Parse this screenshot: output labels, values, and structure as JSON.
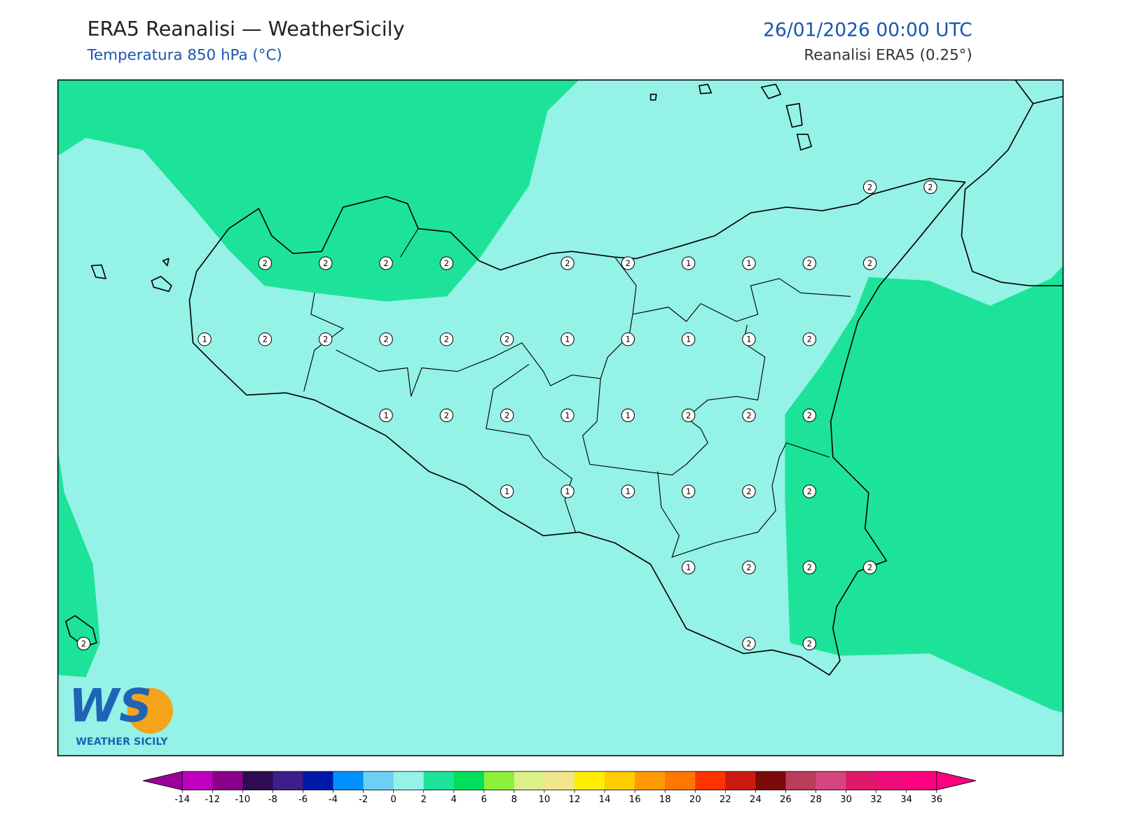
{
  "header": {
    "title": "ERA5 Reanalisi — WeatherSicily",
    "subtitle": "Temperatura 850 hPa (°C)",
    "datetime": "26/01/2026 00:00 UTC",
    "source": "Reanalisi ERA5 (0.25°)"
  },
  "grid": [
    [
      null,
      null,
      null,
      null,
      null,
      null,
      null,
      null,
      null,
      null,
      null,
      null,
      null,
      2,
      2
    ],
    [
      null,
      null,
      null,
      2,
      2,
      2,
      2,
      null,
      2,
      2,
      1,
      1,
      2,
      2,
      null
    ],
    [
      null,
      null,
      1,
      2,
      2,
      2,
      2,
      2,
      1,
      1,
      1,
      1,
      2,
      null,
      null
    ],
    [
      null,
      null,
      null,
      null,
      null,
      1,
      2,
      2,
      1,
      1,
      2,
      2,
      2,
      null,
      null
    ],
    [
      null,
      null,
      null,
      null,
      null,
      null,
      null,
      1,
      1,
      1,
      1,
      2,
      2,
      null,
      null
    ],
    [
      null,
      null,
      null,
      null,
      null,
      null,
      null,
      null,
      null,
      null,
      1,
      2,
      2,
      2,
      null
    ],
    [
      2,
      null,
      null,
      null,
      null,
      null,
      null,
      null,
      null,
      null,
      null,
      2,
      2,
      null,
      null
    ]
  ],
  "logo": {
    "mark": "WS",
    "name": "WEATHER SICILY"
  },
  "colorbar": {
    "ticks": [
      -14,
      -12,
      -10,
      -8,
      -6,
      -4,
      -2,
      0,
      2,
      4,
      6,
      8,
      10,
      12,
      14,
      16,
      18,
      20,
      22,
      24,
      26,
      28,
      30,
      32,
      34,
      36
    ],
    "colors": [
      "#bf00bf",
      "#8b008b",
      "#2e0b52",
      "#3d1f8a",
      "#0019a8",
      "#0090ff",
      "#6dcff6",
      "#94f2e6",
      "#1de39a",
      "#00e05a",
      "#8bf03a",
      "#dcf08a",
      "#f0e68c",
      "#ffee00",
      "#ffcc00",
      "#ff9900",
      "#ff7700",
      "#ff3300",
      "#cc1a10",
      "#7a0a0a",
      "#b93c5a",
      "#d4457f",
      "#e0186a",
      "#f00c78",
      "#ff0080"
    ],
    "under": "#9b009b",
    "over": "#ff0080"
  }
}
